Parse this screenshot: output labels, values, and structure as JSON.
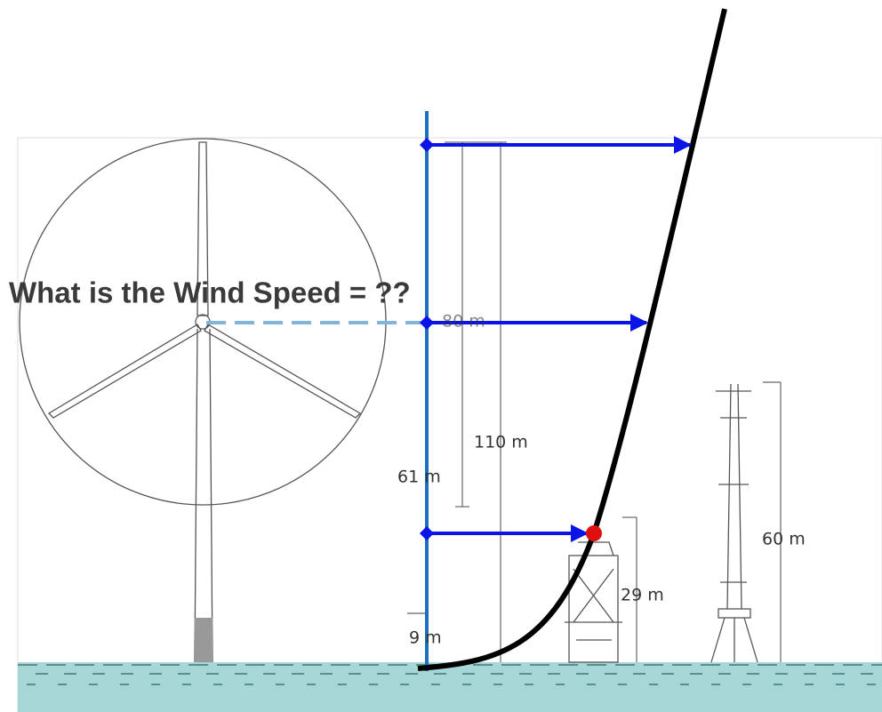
{
  "question": "What is the Wind Speed = ??",
  "labels": {
    "hub_height": "80 m",
    "tip_height": "110 m",
    "tower": "61 m",
    "base": "9 m",
    "platform": "29 m",
    "mast": "60 m"
  }
}
